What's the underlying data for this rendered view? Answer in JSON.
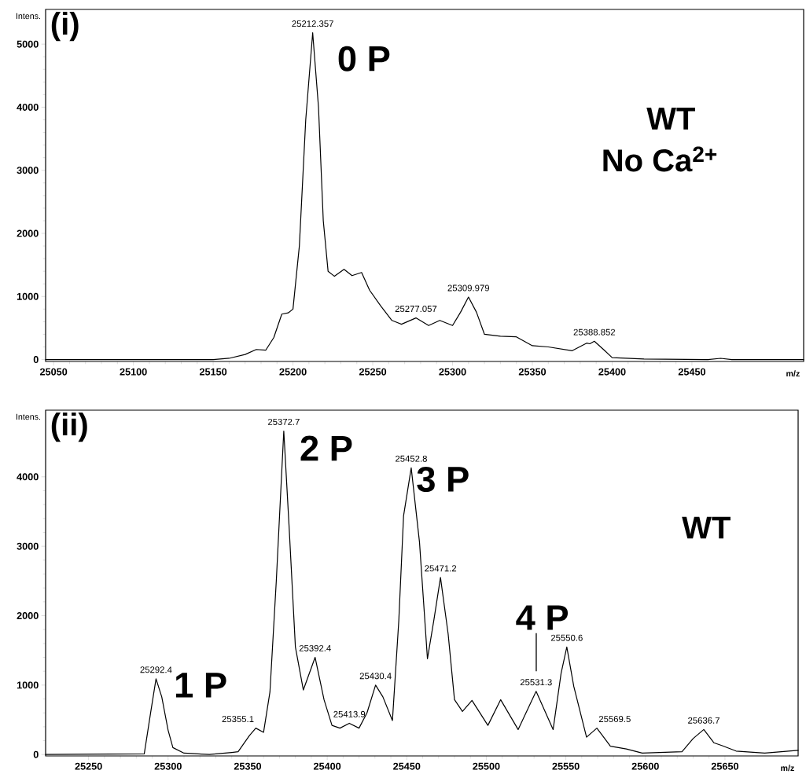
{
  "chart_data": [
    {
      "type": "line",
      "title": "(i)",
      "xlabel": "m/z",
      "ylabel": "Intens.",
      "color": "#000000",
      "marker": "none",
      "line_style": "solid",
      "xlim": [
        25045,
        25520
      ],
      "ylim": [
        -30,
        5550
      ],
      "xticks": [
        25050,
        25100,
        25150,
        25200,
        25250,
        25300,
        25350,
        25400,
        25450
      ],
      "yticks": [
        0,
        1000,
        2000,
        3000,
        4000,
        5000
      ],
      "x": [
        25045,
        25150,
        25160,
        25170,
        25177,
        25183,
        25188,
        25193,
        25197,
        25200,
        25204,
        25208,
        25212.357,
        25216,
        25219,
        25222,
        25226,
        25232,
        25237,
        25243,
        25248,
        25255,
        25262,
        25268,
        25277.057,
        25285,
        25292,
        25300,
        25305,
        25309.979,
        25315,
        25320,
        25330,
        25340,
        25350,
        25360,
        25375,
        25384,
        25386,
        25388.852,
        25395,
        25400,
        25420,
        25460,
        25468,
        25475,
        25520
      ],
      "values": [
        0,
        0,
        20,
        80,
        160,
        150,
        350,
        720,
        740,
        800,
        1800,
        3800,
        5180,
        4000,
        2200,
        1400,
        1320,
        1430,
        1330,
        1380,
        1100,
        850,
        620,
        560,
        660,
        540,
        620,
        540,
        750,
        990,
        750,
        400,
        370,
        360,
        220,
        200,
        140,
        260,
        250,
        290,
        150,
        30,
        10,
        0,
        20,
        0,
        0
      ],
      "annotations": [
        {
          "text": "25212.357",
          "x": 25212.357,
          "y": 5180
        },
        {
          "text": "25277.057",
          "x": 25277.057,
          "y": 660
        },
        {
          "text": "25309.979",
          "x": 25309.979,
          "y": 990
        },
        {
          "text": "25388.852",
          "x": 25388.852,
          "y": 290
        },
        "0 P",
        "WT",
        "No Ca$^{2+}$"
      ]
    },
    {
      "type": "line",
      "title": "(ii)",
      "xlabel": "m/z",
      "ylabel": "Intens.",
      "color": "#000000",
      "marker": "none",
      "line_style": "solid",
      "xlim": [
        25223,
        25696
      ],
      "ylim": [
        -20,
        4960
      ],
      "xticks": [
        25250,
        25300,
        25350,
        25400,
        25450,
        25500,
        25550,
        25600,
        25650
      ],
      "yticks": [
        0,
        1000,
        2000,
        3000,
        4000
      ],
      "x": [
        25223,
        25285,
        25289,
        25292.4,
        25296,
        25300,
        25303,
        25310,
        25326,
        25340,
        25344,
        25351,
        25355.1,
        25360,
        25364,
        25368,
        25372.7,
        25376,
        25380,
        25385,
        25392.4,
        25398,
        25403,
        25408,
        25413.9,
        25420,
        25425,
        25430.4,
        25435,
        25441,
        25445,
        25448,
        25452.8,
        25458,
        25463,
        25467,
        25471.2,
        25476,
        25480,
        25485,
        25491,
        25501,
        25509,
        25520,
        25531.3,
        25542,
        25547,
        25550.6,
        25555,
        25563,
        25569.5,
        25578,
        25588,
        25598,
        25623,
        25630,
        25636.7,
        25643,
        25648,
        25657,
        25675,
        25696
      ],
      "values": [
        0,
        10,
        600,
        1090,
        830,
        350,
        100,
        20,
        0,
        30,
        40,
        270,
        380,
        320,
        900,
        2500,
        4660,
        3300,
        1550,
        930,
        1400,
        790,
        420,
        380,
        450,
        380,
        600,
        1000,
        830,
        490,
        1930,
        3440,
        4130,
        3060,
        1380,
        1930,
        2550,
        1740,
        790,
        620,
        780,
        420,
        790,
        360,
        910,
        360,
        1170,
        1550,
        980,
        250,
        380,
        120,
        80,
        20,
        40,
        230,
        360,
        170,
        130,
        50,
        20,
        60
      ],
      "annotations": [
        {
          "text": "25292.4",
          "x": 25292.4,
          "y": 1090
        },
        {
          "text": "25355.1",
          "x": 25355.1,
          "y": 380
        },
        {
          "text": "25372.7",
          "x": 25372.7,
          "y": 4660
        },
        {
          "text": "25392.4",
          "x": 25392.4,
          "y": 1400
        },
        {
          "text": "25413.9",
          "x": 25413.9,
          "y": 450
        },
        {
          "text": "25430.4",
          "x": 25430.4,
          "y": 1000
        },
        {
          "text": "25452.8",
          "x": 25452.8,
          "y": 4130
        },
        {
          "text": "25471.2",
          "x": 25471.2,
          "y": 2550
        },
        {
          "text": "25531.3",
          "x": 25531.3,
          "y": 910
        },
        {
          "text": "25550.6",
          "x": 25550.6,
          "y": 1550
        },
        {
          "text": "25569.5",
          "x": 25569.5,
          "y": 380
        },
        {
          "text": "25636.7",
          "x": 25636.7,
          "y": 360
        },
        "1 P",
        "2 P",
        "3 P",
        "4 P",
        "WT"
      ]
    }
  ]
}
